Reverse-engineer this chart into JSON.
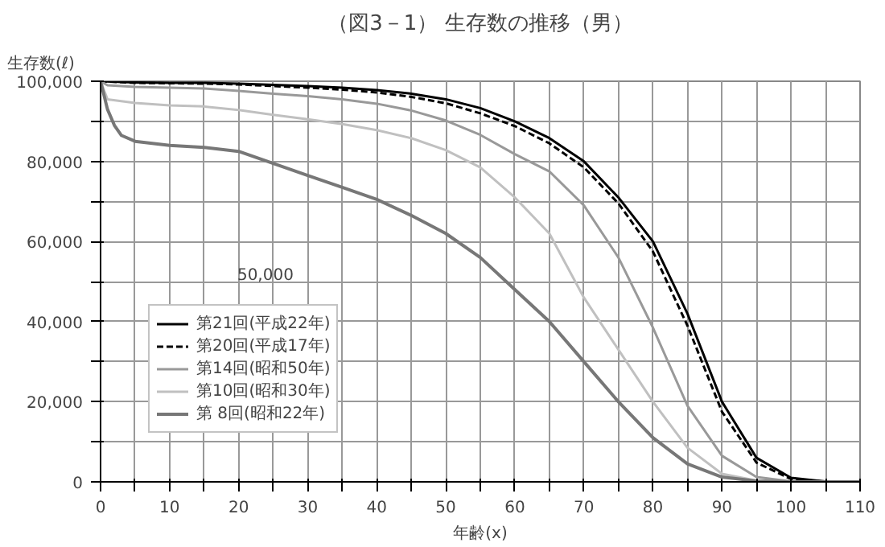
{
  "chart_data": {
    "type": "line",
    "title": "（図3－1） 生存数の推移（男）",
    "ylabel": "生存数(ℓ)",
    "xlabel": "年齢(x)",
    "annotations": [
      "50,000"
    ],
    "xlim": [
      0,
      110
    ],
    "ylim": [
      0,
      100000
    ],
    "xticks": [
      0,
      {
        "value": 5,
        "label": null
      },
      10,
      {
        "value": 15,
        "label": null
      },
      20,
      {
        "value": 25,
        "label": null
      },
      30,
      {
        "value": 35,
        "label": null
      },
      40,
      {
        "value": 45,
        "label": null
      },
      50,
      {
        "value": 55,
        "label": null
      },
      60,
      {
        "value": 65,
        "label": null
      },
      70,
      {
        "value": 75,
        "label": null
      },
      80,
      {
        "value": 85,
        "label": null
      },
      90,
      {
        "value": 95,
        "label": null
      },
      100,
      {
        "value": 105,
        "label": null
      },
      110
    ],
    "yticks": [
      {
        "value": 0,
        "label": "0"
      },
      {
        "value": 10000,
        "label": null
      },
      {
        "value": 20000,
        "label": "20,000"
      },
      {
        "value": 30000,
        "label": null
      },
      {
        "value": 40000,
        "label": "40,000"
      },
      {
        "value": 50000,
        "label": null
      },
      {
        "value": 60000,
        "label": "60,000"
      },
      {
        "value": 70000,
        "label": null
      },
      {
        "value": 80000,
        "label": "80,000"
      },
      {
        "value": 90000,
        "label": null
      },
      {
        "value": 100000,
        "label": "100,000"
      }
    ],
    "grid": true,
    "legend": "bottom left",
    "marker": "none",
    "series": [
      {
        "name": "第21回(平成22年)",
        "color": "#000000",
        "line_style": "solid",
        "x": [
          0,
          5,
          10,
          15,
          20,
          25,
          30,
          35,
          40,
          45,
          50,
          55,
          60,
          65,
          70,
          75,
          80,
          85,
          90,
          95,
          100,
          105,
          110
        ],
        "values": [
          100000,
          99700,
          99600,
          99600,
          99400,
          99100,
          98800,
          98400,
          97800,
          96900,
          95500,
          93300,
          90000,
          85800,
          80000,
          71000,
          60000,
          42000,
          20000,
          6000,
          1000,
          100,
          0
        ]
      },
      {
        "name": "第20回(平成17年)",
        "color": "#000000",
        "line_style": "dashed",
        "x": [
          0,
          5,
          10,
          15,
          20,
          25,
          30,
          35,
          40,
          45,
          50,
          55,
          60,
          65,
          70,
          75,
          80,
          85,
          90,
          95,
          100,
          105,
          110
        ],
        "values": [
          100000,
          99600,
          99500,
          99400,
          99200,
          98800,
          98400,
          97900,
          97200,
          96100,
          94500,
          92000,
          88800,
          84500,
          78500,
          69500,
          57500,
          39000,
          17500,
          4800,
          700,
          50,
          0
        ]
      },
      {
        "name": "第14回(昭和50年)",
        "color": "#999999",
        "line_style": "solid",
        "x": [
          0,
          1,
          5,
          10,
          15,
          20,
          25,
          30,
          35,
          40,
          45,
          50,
          55,
          60,
          65,
          70,
          75,
          80,
          85,
          90,
          95,
          100,
          105,
          110
        ],
        "values": [
          100000,
          99000,
          98600,
          98400,
          98200,
          97600,
          96900,
          96300,
          95500,
          94400,
          92700,
          90200,
          86600,
          81800,
          77500,
          69000,
          56000,
          38500,
          19000,
          6500,
          1200,
          100,
          0,
          0
        ]
      },
      {
        "name": "第10回(昭和30年)",
        "color": "#c0c0c0",
        "line_style": "solid",
        "x": [
          0,
          1,
          5,
          10,
          15,
          20,
          25,
          30,
          35,
          40,
          45,
          50,
          55,
          60,
          65,
          70,
          75,
          80,
          85,
          90,
          95,
          100,
          110
        ],
        "values": [
          100000,
          95500,
          94600,
          94000,
          93700,
          92800,
          91600,
          90500,
          89300,
          87800,
          85800,
          82800,
          78500,
          71000,
          62000,
          46000,
          33000,
          20000,
          8500,
          2000,
          300,
          0,
          0
        ]
      },
      {
        "name": "第 8回(昭和22年)",
        "color": "#777777",
        "line_style": "solid",
        "x": [
          0,
          1,
          2,
          3,
          5,
          10,
          15,
          20,
          25,
          30,
          35,
          40,
          45,
          50,
          55,
          60,
          65,
          70,
          75,
          80,
          85,
          90,
          95,
          100,
          110
        ],
        "values": [
          100000,
          93000,
          89000,
          86500,
          85000,
          84000,
          83500,
          82500,
          79500,
          76500,
          73500,
          70500,
          66500,
          62000,
          56000,
          48000,
          40000,
          30000,
          20000,
          11000,
          4500,
          1200,
          200,
          0,
          0
        ]
      }
    ]
  }
}
